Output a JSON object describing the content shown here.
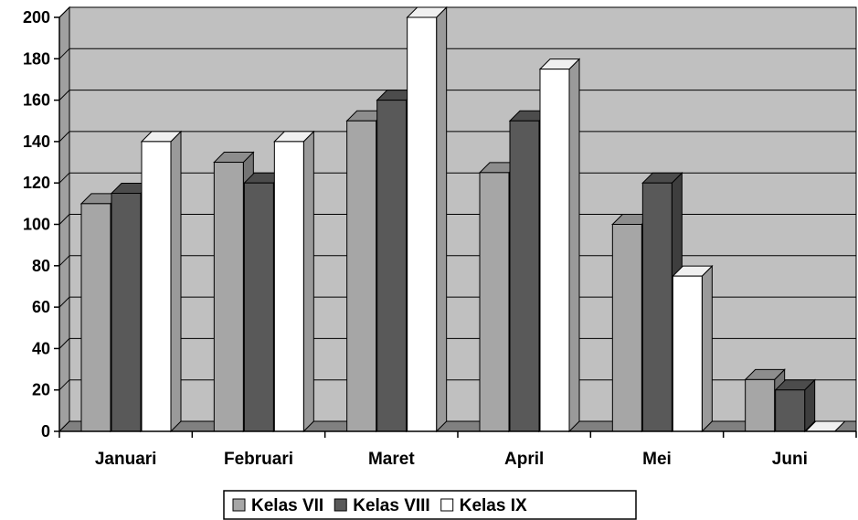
{
  "chart_data": {
    "type": "bar",
    "categories": [
      "Januari",
      "Februari",
      "Maret",
      "April",
      "Mei",
      "Juni"
    ],
    "series": [
      {
        "name": "Kelas VII",
        "values": [
          110,
          130,
          150,
          125,
          100,
          25
        ],
        "color": "#a6a6a6"
      },
      {
        "name": "Kelas VIII",
        "values": [
          115,
          120,
          160,
          150,
          120,
          20
        ],
        "color": "#595959"
      },
      {
        "name": "Kelas IX",
        "values": [
          140,
          140,
          200,
          175,
          75,
          0
        ],
        "color": "#ffffff"
      }
    ],
    "ylim": [
      0,
      200
    ],
    "yticks": [
      0,
      20,
      40,
      60,
      80,
      100,
      120,
      140,
      160,
      180,
      200
    ],
    "grid": true,
    "three_d": true,
    "legend": "bottom-center",
    "plot_background": "#c0c0c0"
  }
}
